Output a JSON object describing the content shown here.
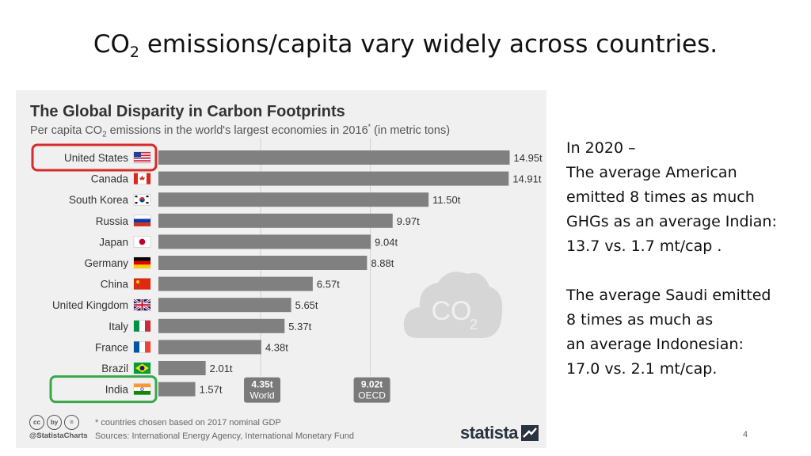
{
  "slide": {
    "title_main": "CO",
    "title_sub": "2",
    "title_rest": " emissions/capita vary widely across countries.",
    "page_number": "4"
  },
  "side_text": {
    "line1": "In 2020 –",
    "line2": "The average American",
    "line3": "emitted 8 times as much",
    "line4": "GHGs as an average Indian:",
    "line5": "13.7 vs. 1.7 mt/cap .",
    "line6": "The average Saudi emitted",
    "line7": "8 times as much as",
    "line8": "an average Indonesian:",
    "line9": "17.0 vs. 2.1 mt/cap."
  },
  "chart_data": {
    "type": "bar",
    "orientation": "horizontal",
    "title": "The Global Disparity in Carbon Footprints",
    "subtitle_a": "Per capita CO",
    "subtitle_sub": "2",
    "subtitle_b": " emissions in the world's largest economies in 2016",
    "subtitle_sup": "*",
    "subtitle_c": " (in metric tons)",
    "categories": [
      "United States",
      "Canada",
      "South Korea",
      "Russia",
      "Japan",
      "Germany",
      "China",
      "United Kingdom",
      "Italy",
      "France",
      "Brazil",
      "India"
    ],
    "values": [
      14.95,
      14.91,
      11.5,
      9.97,
      9.04,
      8.88,
      6.57,
      5.65,
      5.37,
      4.38,
      2.01,
      1.57
    ],
    "value_labels": [
      "14.95t",
      "14.91t",
      "11.50t",
      "9.97t",
      "9.04t",
      "8.88t",
      "6.57t",
      "5.65t",
      "5.37t",
      "4.38t",
      "2.01t",
      "1.57t"
    ],
    "xlim": [
      0,
      15
    ],
    "highlighted": {
      "United States": "#d62b2b",
      "India": "#3aa64a"
    },
    "reference_lines": [
      {
        "value": 4.35,
        "label_value": "4.35t",
        "label_name": "World"
      },
      {
        "value": 9.02,
        "label_value": "9.02t",
        "label_name": "OECD"
      }
    ],
    "cloud_label": "CO",
    "cloud_sub": "2",
    "footnote": "* countries chosen based on 2017 nominal GDP",
    "sources": "Sources: International Energy Agency, International Monetary Fund",
    "handle": "@StatistaCharts",
    "brand": "statista",
    "cc_icons": [
      "cc",
      "by",
      "="
    ]
  },
  "colors": {
    "bar": "#808080",
    "ref_box": "#7a7a7a",
    "background": "#f0f0f0"
  }
}
